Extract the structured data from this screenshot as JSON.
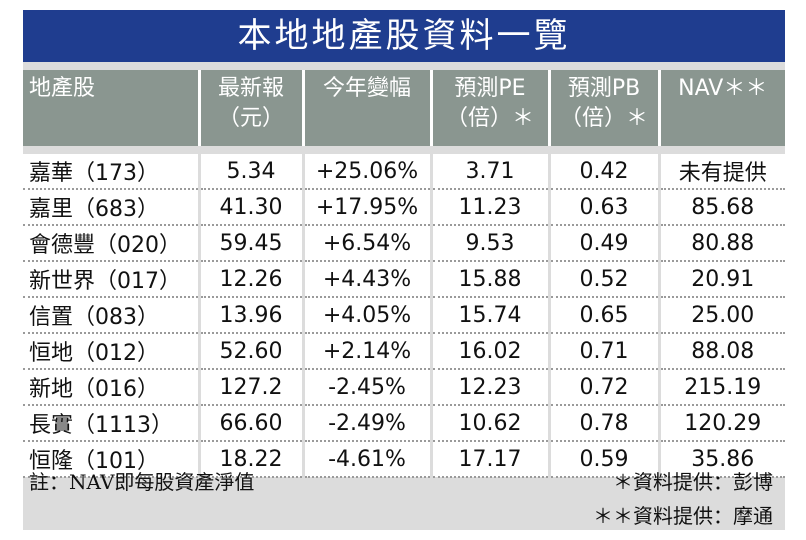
{
  "title": "本地地產股資料一覽",
  "headers": [
    {
      "line1": "地產股",
      "line2": ""
    },
    {
      "line1": "最新報",
      "line2": "（元）"
    },
    {
      "line1": "今年變幅",
      "line2": ""
    },
    {
      "line1": "預測PE",
      "line2": "（倍）＊"
    },
    {
      "line1": "預測PB",
      "line2": "（倍）＊"
    },
    {
      "line1": "NAV＊＊",
      "line2": ""
    }
  ],
  "rows": [
    {
      "name": "嘉華（173）",
      "price": "5.34",
      "change": "+25.06%",
      "pe": "3.71",
      "pb": "0.42",
      "nav": "未有提供"
    },
    {
      "name": "嘉里（683）",
      "price": "41.30",
      "change": "+17.95%",
      "pe": "11.23",
      "pb": "0.63",
      "nav": "85.68"
    },
    {
      "name": "會德豐（020）",
      "price": "59.45",
      "change": "+6.54%",
      "pe": "9.53",
      "pb": "0.49",
      "nav": "80.88"
    },
    {
      "name": "新世界（017）",
      "price": "12.26",
      "change": "+4.43%",
      "pe": "15.88",
      "pb": "0.52",
      "nav": "20.91"
    },
    {
      "name": "信置（083）",
      "price": "13.96",
      "change": "+4.05%",
      "pe": "15.74",
      "pb": "0.65",
      "nav": "25.00"
    },
    {
      "name": "恒地（012）",
      "price": "52.60",
      "change": "+2.14%",
      "pe": "16.02",
      "pb": "0.71",
      "nav": "88.08"
    },
    {
      "name": "新地（016）",
      "price": "127.2",
      "change": "-2.45%",
      "pe": "12.23",
      "pb": "0.72",
      "nav": "215.19"
    },
    {
      "name": "長實（1113）",
      "price": "66.60",
      "change": "-2.49%",
      "pe": "10.62",
      "pb": "0.78",
      "nav": "120.29"
    },
    {
      "name": "恒隆（101）",
      "price": "18.22",
      "change": "-4.61%",
      "pe": "17.17",
      "pb": "0.59",
      "nav": "35.86"
    }
  ],
  "footnotes": {
    "note": "註：NAV即每股資產淨值",
    "source1": "＊資料提供：彭博",
    "source2": "＊＊資料提供：摩通"
  },
  "colors": {
    "title_bg": "#1f3d8f",
    "header_bg": "#8a9690",
    "panel_bg": "#dcdcdc"
  }
}
